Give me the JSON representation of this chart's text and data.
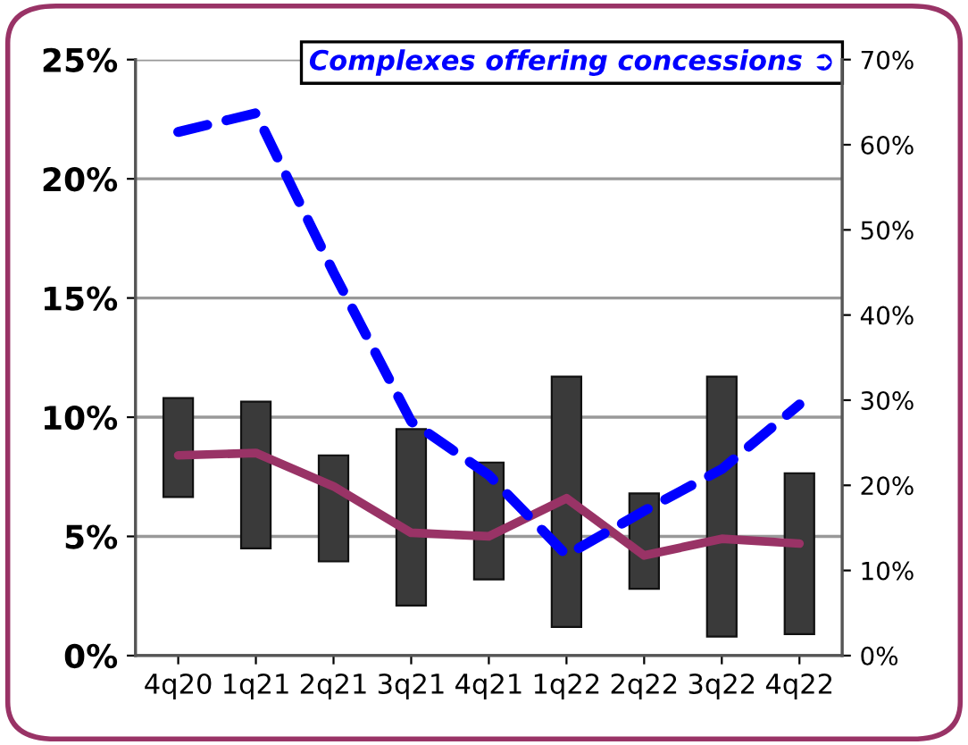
{
  "chart_data": {
    "type": "bar",
    "categories": [
      "4q20",
      "1q21",
      "2q21",
      "3q21",
      "4q21",
      "1q22",
      "2q22",
      "3q22",
      "4q22"
    ],
    "series": [
      {
        "color": "#3a3a3a",
        "base": [
          6.65,
          4.5,
          3.95,
          2.1,
          3.2,
          1.2,
          2.8,
          0.8,
          0.9
        ],
        "values": [
          4.15,
          6.15,
          4.45,
          7.4,
          4.9,
          10.5,
          4.0,
          10.9,
          6.75
        ]
      },
      {
        "type": "line",
        "color": "#993366",
        "line_style": "solid",
        "values": [
          8.4,
          8.5,
          7.1,
          5.15,
          5.0,
          6.6,
          4.2,
          4.9,
          4.7
        ]
      },
      {
        "type": "line",
        "axis": "y2",
        "name": "Complexes offering concessions ➲",
        "color": "#0000ff",
        "line_style": "dashed",
        "values": [
          61.5,
          63.7,
          45,
          27.5,
          21.2,
          11.8,
          17,
          21.9,
          29.5
        ]
      }
    ],
    "ylim": [
      0,
      25
    ],
    "yticks": [
      {
        "value": 0,
        "label": "0%"
      },
      {
        "value": 5,
        "label": "5%"
      },
      {
        "value": 10,
        "label": "10%"
      },
      {
        "value": 15,
        "label": "15%"
      },
      {
        "value": 20,
        "label": "20%"
      },
      {
        "value": 25,
        "label": "25%"
      }
    ],
    "y2lim": [
      0,
      70
    ],
    "y2ticks": [
      {
        "value": 0,
        "label": "0%"
      },
      {
        "value": 10,
        "label": "10%"
      },
      {
        "value": 20,
        "label": "20%"
      },
      {
        "value": 30,
        "label": "30%"
      },
      {
        "value": 40,
        "label": "40%"
      },
      {
        "value": 50,
        "label": "50%"
      },
      {
        "value": 60,
        "label": "60%"
      },
      {
        "value": 70,
        "label": "70%"
      }
    ],
    "grid": "y",
    "legend": "top right",
    "marker": "none"
  }
}
